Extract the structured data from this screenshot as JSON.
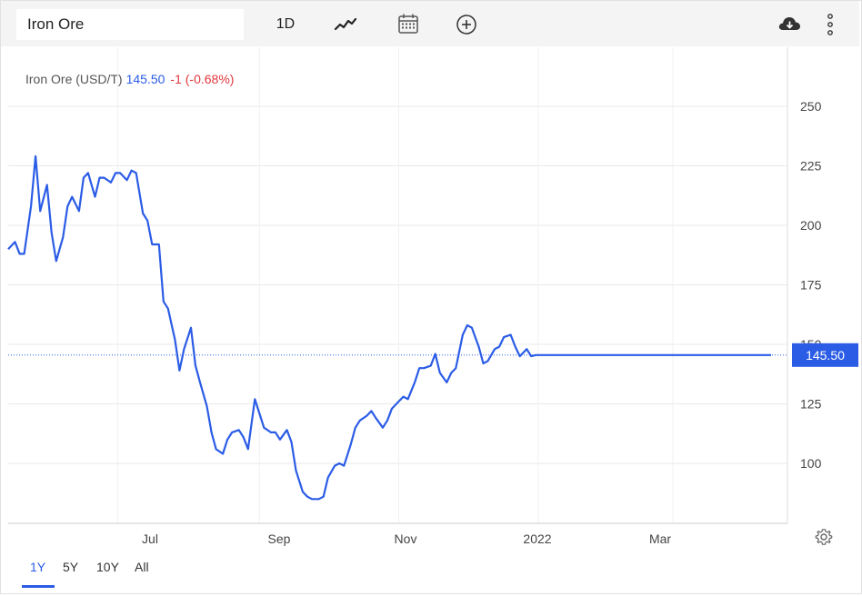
{
  "toolbar": {
    "symbol": "Iron Ore",
    "interval_label": "1D",
    "icons": [
      "line-chart-icon",
      "calendar-icon",
      "add-circle-icon",
      "cloud-download-icon",
      "more-vertical-icon"
    ]
  },
  "legend": {
    "name": "Iron Ore (USD/T)",
    "price": "145.50",
    "change": "-1 (-0.68%)"
  },
  "last_price_label": "145.50",
  "ranges": [
    {
      "label": "1Y",
      "active": true
    },
    {
      "label": "5Y",
      "active": false
    },
    {
      "label": "10Y",
      "active": false
    },
    {
      "label": "All",
      "active": false
    }
  ],
  "colors": {
    "line": "#2b5ce6",
    "negative": "#e0383e",
    "grid": "#e8e8e8",
    "toolbar_bg": "#f4f4f4"
  },
  "chart_data": {
    "type": "line",
    "title": "",
    "xlabel": "",
    "ylabel": "",
    "x_tick_labels": [
      "Jul",
      "Sep",
      "Nov",
      "2022",
      "Mar"
    ],
    "y_ticks": [
      100,
      125,
      150,
      175,
      200,
      225,
      250
    ],
    "ylim": [
      75,
      260
    ],
    "grid": true,
    "last_value": 145.5,
    "series": [
      {
        "name": "",
        "x": [
          "2021-05-14",
          "2021-05-17",
          "2021-05-19",
          "2021-05-21",
          "2021-05-24",
          "2021-05-26",
          "2021-05-28",
          "2021-05-31",
          "2021-06-02",
          "2021-06-04",
          "2021-06-07",
          "2021-06-09",
          "2021-06-11",
          "2021-06-14",
          "2021-06-16",
          "2021-06-18",
          "2021-06-21",
          "2021-06-23",
          "2021-06-25",
          "2021-06-28",
          "2021-06-30",
          "2021-07-02",
          "2021-07-05",
          "2021-07-07",
          "2021-07-09",
          "2021-07-12",
          "2021-07-14",
          "2021-07-16",
          "2021-07-19",
          "2021-07-21",
          "2021-07-23",
          "2021-07-26",
          "2021-07-28",
          "2021-07-30",
          "2021-08-02",
          "2021-08-04",
          "2021-08-06",
          "2021-08-09",
          "2021-08-11",
          "2021-08-13",
          "2021-08-16",
          "2021-08-18",
          "2021-08-20",
          "2021-08-23",
          "2021-08-25",
          "2021-08-27",
          "2021-08-30",
          "2021-09-01",
          "2021-09-03",
          "2021-09-06",
          "2021-09-08",
          "2021-09-10",
          "2021-09-13",
          "2021-09-15",
          "2021-09-17",
          "2021-09-20",
          "2021-09-22",
          "2021-09-24",
          "2021-09-27",
          "2021-09-29",
          "2021-10-01",
          "2021-10-04",
          "2021-10-06",
          "2021-10-08",
          "2021-10-11",
          "2021-10-13",
          "2021-10-15",
          "2021-10-18",
          "2021-10-20",
          "2021-10-22",
          "2021-10-25",
          "2021-10-27",
          "2021-10-29",
          "2021-11-01",
          "2021-11-03",
          "2021-11-05",
          "2021-11-08",
          "2021-11-10",
          "2021-11-12",
          "2021-11-15",
          "2021-11-17",
          "2021-11-19",
          "2021-11-22",
          "2021-11-24",
          "2021-11-26",
          "2021-11-29",
          "2021-12-01",
          "2021-12-03",
          "2021-12-06",
          "2021-12-08",
          "2021-12-10",
          "2021-12-13",
          "2021-12-15",
          "2021-12-17",
          "2021-12-20",
          "2021-12-22",
          "2021-12-24",
          "2021-12-27",
          "2021-12-29",
          "2021-12-31",
          "2022-01-03",
          "2022-01-05",
          "2022-01-07",
          "2022-01-10",
          "2022-01-12",
          "2022-01-14",
          "2022-01-17",
          "2022-01-19",
          "2022-01-21",
          "2022-01-24",
          "2022-01-26",
          "2022-01-28",
          "2022-01-31",
          "2022-02-02",
          "2022-02-04",
          "2022-02-07",
          "2022-02-09",
          "2022-02-11",
          "2022-02-14",
          "2022-02-16",
          "2022-02-18",
          "2022-02-21",
          "2022-02-23",
          "2022-02-25",
          "2022-02-28",
          "2022-03-02",
          "2022-03-04",
          "2022-03-07",
          "2022-03-09",
          "2022-03-11",
          "2022-03-14",
          "2022-03-16",
          "2022-03-18",
          "2022-03-21",
          "2022-03-23",
          "2022-03-25",
          "2022-03-28",
          "2022-03-30",
          "2022-04-01",
          "2022-04-04",
          "2022-04-06",
          "2022-04-08",
          "2022-04-11",
          "2022-04-13"
        ],
        "values": [
          190,
          193,
          188,
          188,
          208,
          229,
          206,
          217,
          197,
          185,
          195,
          208,
          212,
          206,
          220,
          222,
          212,
          220,
          220,
          218,
          222,
          222,
          219,
          223,
          222,
          205,
          202,
          192,
          192,
          168,
          165,
          152,
          139,
          148,
          157,
          141,
          134,
          124,
          113,
          106,
          104,
          110,
          113,
          114,
          111,
          106,
          127,
          121,
          115,
          113,
          113,
          110,
          114,
          109,
          97,
          88,
          86,
          85,
          85,
          86,
          94,
          99,
          100,
          99,
          108,
          115,
          118,
          120,
          122,
          119,
          115,
          118,
          123,
          126,
          128,
          127,
          134,
          140,
          140,
          141,
          146,
          138,
          134,
          138,
          140,
          154,
          158,
          157,
          149,
          142,
          143,
          148,
          149,
          153,
          154,
          149,
          145,
          148,
          145,
          145.5,
          145.5,
          145.5,
          145.5,
          145.5,
          145.5,
          145.5,
          145.5,
          145.5,
          145.5,
          145.5,
          145.5,
          145.5,
          145.5,
          145.5,
          145.5,
          145.5,
          145.5,
          145.5,
          145.5,
          145.5,
          145.5,
          145.5,
          145.5,
          145.5,
          145.5,
          145.5,
          145.5,
          145.5,
          145.5,
          145.5,
          145.5,
          145.5,
          145.5,
          145.5,
          145.5,
          145.5,
          145.5,
          145.5,
          145.5,
          145.5,
          145.5,
          145.5,
          145.5,
          145.5
        ]
      }
    ]
  }
}
